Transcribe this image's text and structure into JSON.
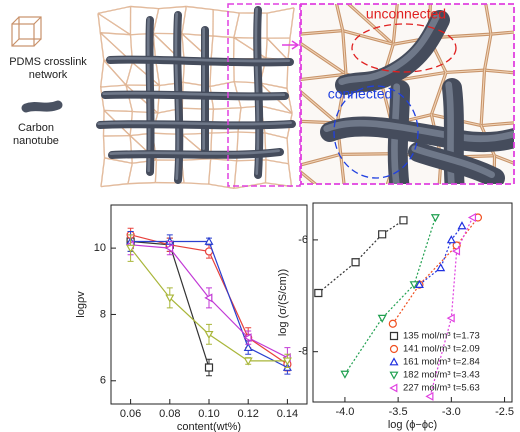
{
  "illustration": {
    "legend": [
      "PDMS crosslink network",
      "Carbon nanotube"
    ],
    "annotations": [
      "unconnected",
      "connected"
    ]
  },
  "chart_data": [
    {
      "type": "line",
      "xlabel": "content(wt%)",
      "ylabel": "logρv",
      "x": [
        0.06,
        0.08,
        0.1,
        0.12,
        0.14
      ],
      "xlim": [
        0.05,
        0.15
      ],
      "ylim": [
        5.3,
        11.3
      ],
      "xticks": [
        0.06,
        0.08,
        {
          "value": 0.1,
          "label": "0.10"
        },
        0.12,
        0.14
      ],
      "yticks": [
        6,
        8,
        10
      ],
      "series": [
        {
          "color": "#333333",
          "marker": "square",
          "values": [
            10.2,
            10.1,
            6.4,
            null,
            null
          ],
          "errors": [
            0.3,
            0.2,
            0.25,
            null,
            null
          ]
        },
        {
          "color": "#e8413c",
          "marker": "circle",
          "values": [
            10.4,
            10.1,
            9.9,
            7.3,
            6.5
          ],
          "errors": [
            0.2,
            0.2,
            0.2,
            0.3,
            0.2
          ]
        },
        {
          "color": "#2a3fd0",
          "marker": "triangle-up",
          "values": [
            10.2,
            10.2,
            10.2,
            7.0,
            6.4
          ],
          "errors": [
            0.3,
            0.2,
            0.1,
            0.2,
            0.2
          ]
        },
        {
          "color": "#c23ad6",
          "marker": "triangle-left",
          "values": [
            10.1,
            10.0,
            8.5,
            7.3,
            6.7
          ],
          "errors": [
            0.3,
            0.2,
            0.3,
            0.2,
            0.3
          ]
        },
        {
          "color": "#a9b63a",
          "marker": "triangle-down",
          "values": [
            10.0,
            8.5,
            7.4,
            6.6,
            6.6
          ],
          "errors": [
            0.4,
            0.3,
            0.3,
            0.1,
            0.2
          ]
        }
      ]
    },
    {
      "type": "scatter",
      "xlabel": "log (ϕ−ϕc)",
      "ylabel": "log (σ/(S/cm))",
      "xlim": [
        -4.3,
        -2.43
      ],
      "ylim": [
        -8.9,
        -5.34
      ],
      "xticks": [
        {
          "value": -4,
          "label": "-4.0"
        },
        {
          "value": -3.5,
          "label": "-3.5"
        },
        {
          "value": -3,
          "label": "-3.0"
        },
        {
          "value": -2.5,
          "label": "-2.5"
        }
      ],
      "yticks": [
        -8,
        -6
      ],
      "legend": "lower right",
      "series": [
        {
          "name": "135 mol/m³ t=1.73",
          "color": "#333333",
          "marker": "square",
          "x": [
            -4.25,
            -3.9,
            -3.65,
            -3.45
          ],
          "values": [
            -6.95,
            -6.4,
            -5.9,
            -5.65
          ]
        },
        {
          "name": "141 mol/m³ t=2.09",
          "color": "#f05020",
          "marker": "circle",
          "x": [
            -3.55,
            -3.3,
            -2.95,
            -2.75
          ],
          "values": [
            -7.5,
            -6.8,
            -6.1,
            -5.6
          ]
        },
        {
          "name": "161 mol/m³ t=2.84",
          "color": "#2030e0",
          "marker": "triangle-up",
          "x": [
            -3.3,
            -3.1,
            -3.0,
            -2.9
          ],
          "values": [
            -6.8,
            -6.5,
            -6.0,
            -5.75
          ]
        },
        {
          "name": "182 mol/m³ t=3.43",
          "color": "#20a050",
          "marker": "triangle-down",
          "x": [
            -4.0,
            -3.65,
            -3.35,
            -3.15
          ],
          "values": [
            -8.4,
            -7.4,
            -6.8,
            -5.6
          ]
        },
        {
          "name": "227 mol/m³ t=5.63",
          "color": "#e040e0",
          "marker": "triangle-left",
          "x": [
            -3.2,
            -3.0,
            -2.95,
            -2.8
          ],
          "values": [
            -8.8,
            -7.4,
            -6.2,
            -5.6
          ]
        }
      ]
    }
  ]
}
